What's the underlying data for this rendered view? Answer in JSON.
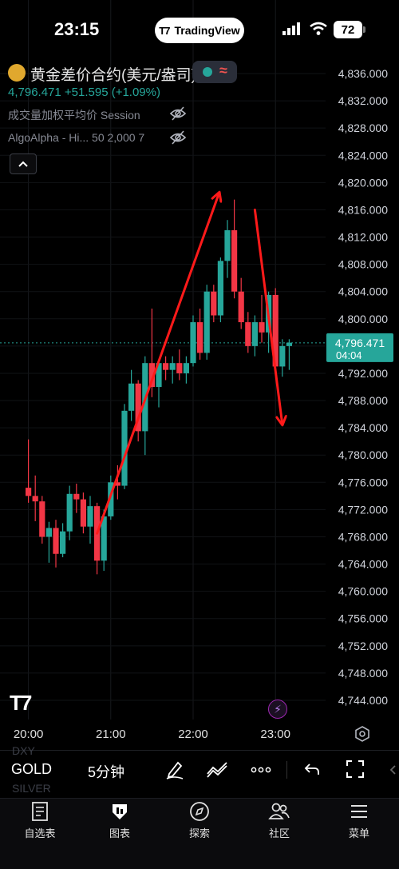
{
  "status_bar": {
    "time": "23:15",
    "app_pill": "TradingView",
    "battery": "72"
  },
  "header": {
    "symbol": "黄金差价合约(美元/盎司)",
    "price_line": "4,796.471 +51.595 (+1.09%)",
    "indicators": [
      {
        "label": "成交量加权平均价  Session"
      },
      {
        "label": "AlgoAlpha - Hi...  50 2,000 7"
      }
    ]
  },
  "colors": {
    "up": "#26a69a",
    "down": "#f23645",
    "arrow": "#ff1a1a",
    "price_tag": "#26a69a"
  },
  "chart_data": {
    "type": "candlestick",
    "interval_minutes": 5,
    "ylim": [
      4742,
      4838
    ],
    "y_ticks": [
      4836,
      4832,
      4828,
      4824,
      4820,
      4816,
      4812,
      4808,
      4804,
      4800,
      4796,
      4792,
      4788,
      4784,
      4780,
      4776,
      4772,
      4768,
      4764,
      4760,
      4756,
      4752,
      4748,
      4744
    ],
    "y_tick_labels": [
      "4,836.000",
      "4,832.000",
      "4,828.000",
      "4,824.000",
      "4,820.000",
      "4,816.000",
      "4,812.000",
      "4,808.000",
      "4,804.000",
      "4,800.000",
      "4,796.000",
      "4,792.000",
      "4,788.000",
      "4,784.000",
      "4,780.000",
      "4,776.000",
      "4,772.000",
      "4,768.000",
      "4,764.000",
      "4,760.000",
      "4,756.000",
      "4,752.000",
      "4,748.000",
      "4,744.000"
    ],
    "x_tick_labels": [
      {
        "minutes": -45,
        "label": "20:00"
      },
      {
        "minutes": 15,
        "label": "21:00"
      },
      {
        "minutes": 75,
        "label": "22:00"
      },
      {
        "minutes": 135,
        "label": "23:00"
      }
    ],
    "current_price": {
      "value": 4796.471,
      "label": "4,796.471",
      "countdown": "04:04"
    },
    "candles": [
      {
        "t": -45,
        "o": 4775.2,
        "h": 4782.3,
        "l": 4773.0,
        "c": 4774.0
      },
      {
        "t": -40,
        "o": 4774.0,
        "h": 4777.0,
        "l": 4770.3,
        "c": 4773.2
      },
      {
        "t": -35,
        "o": 4773.2,
        "h": 4774.0,
        "l": 4767.0,
        "c": 4768.0
      },
      {
        "t": -30,
        "o": 4768.0,
        "h": 4770.2,
        "l": 4764.2,
        "c": 4769.3
      },
      {
        "t": -25,
        "o": 4769.3,
        "h": 4770.5,
        "l": 4763.5,
        "c": 4765.5
      },
      {
        "t": -20,
        "o": 4765.5,
        "h": 4770.0,
        "l": 4765.0,
        "c": 4768.8
      },
      {
        "t": -15,
        "o": 4768.8,
        "h": 4775.5,
        "l": 4767.5,
        "c": 4774.3
      },
      {
        "t": -10,
        "o": 4774.3,
        "h": 4775.8,
        "l": 4771.5,
        "c": 4773.5
      },
      {
        "t": -5,
        "o": 4773.5,
        "h": 4774.5,
        "l": 4768.5,
        "c": 4769.5
      },
      {
        "t": 0,
        "o": 4769.5,
        "h": 4774.0,
        "l": 4767.0,
        "c": 4772.5
      },
      {
        "t": 5,
        "o": 4772.5,
        "h": 4773.0,
        "l": 4762.5,
        "c": 4764.5
      },
      {
        "t": 10,
        "o": 4764.5,
        "h": 4772.0,
        "l": 4763.0,
        "c": 4771.0
      },
      {
        "t": 15,
        "o": 4771.0,
        "h": 4777.0,
        "l": 4770.5,
        "c": 4776.0
      },
      {
        "t": 20,
        "o": 4776.0,
        "h": 4778.5,
        "l": 4773.5,
        "c": 4775.5
      },
      {
        "t": 25,
        "o": 4775.5,
        "h": 4787.5,
        "l": 4775.0,
        "c": 4786.5
      },
      {
        "t": 30,
        "o": 4786.5,
        "h": 4792.5,
        "l": 4785.0,
        "c": 4790.5
      },
      {
        "t": 35,
        "o": 4790.5,
        "h": 4791.0,
        "l": 4782.0,
        "c": 4783.5
      },
      {
        "t": 40,
        "o": 4783.5,
        "h": 4794.5,
        "l": 4780.0,
        "c": 4793.5
      },
      {
        "t": 45,
        "o": 4793.5,
        "h": 4801.5,
        "l": 4788.5,
        "c": 4790.0
      },
      {
        "t": 50,
        "o": 4790.0,
        "h": 4794.0,
        "l": 4787.0,
        "c": 4793.5
      },
      {
        "t": 55,
        "o": 4793.5,
        "h": 4794.5,
        "l": 4791.0,
        "c": 4792.5
      },
      {
        "t": 60,
        "o": 4792.5,
        "h": 4794.5,
        "l": 4790.5,
        "c": 4793.5
      },
      {
        "t": 65,
        "o": 4793.5,
        "h": 4795.5,
        "l": 4791.0,
        "c": 4792.0
      },
      {
        "t": 70,
        "o": 4792.0,
        "h": 4794.5,
        "l": 4790.5,
        "c": 4793.5
      },
      {
        "t": 75,
        "o": 4793.5,
        "h": 4800.5,
        "l": 4793.0,
        "c": 4799.5
      },
      {
        "t": 80,
        "o": 4799.5,
        "h": 4801.5,
        "l": 4794.0,
        "c": 4795.0
      },
      {
        "t": 85,
        "o": 4795.0,
        "h": 4805.0,
        "l": 4794.0,
        "c": 4804.0
      },
      {
        "t": 90,
        "o": 4804.0,
        "h": 4805.0,
        "l": 4799.5,
        "c": 4800.5
      },
      {
        "t": 95,
        "o": 4800.5,
        "h": 4809.0,
        "l": 4799.5,
        "c": 4808.5
      },
      {
        "t": 100,
        "o": 4808.5,
        "h": 4814.5,
        "l": 4806.0,
        "c": 4813.0
      },
      {
        "t": 105,
        "o": 4813.0,
        "h": 4817.5,
        "l": 4803.0,
        "c": 4804.0
      },
      {
        "t": 110,
        "o": 4804.0,
        "h": 4806.0,
        "l": 4798.5,
        "c": 4799.5
      },
      {
        "t": 115,
        "o": 4799.5,
        "h": 4801.0,
        "l": 4795.0,
        "c": 4796.0
      },
      {
        "t": 120,
        "o": 4796.0,
        "h": 4800.5,
        "l": 4794.5,
        "c": 4799.5
      },
      {
        "t": 125,
        "o": 4799.5,
        "h": 4803.5,
        "l": 4796.5,
        "c": 4798.0
      },
      {
        "t": 130,
        "o": 4798.0,
        "h": 4804.0,
        "l": 4795.0,
        "c": 4803.5
      },
      {
        "t": 135,
        "o": 4803.5,
        "h": 4804.5,
        "l": 4792.0,
        "c": 4793.0
      },
      {
        "t": 140,
        "o": 4793.0,
        "h": 4797.0,
        "l": 4791.5,
        "c": 4796.0
      },
      {
        "t": 145,
        "o": 4796.0,
        "h": 4797.0,
        "l": 4792.5,
        "c": 4796.5
      }
    ],
    "annotations": [
      {
        "type": "arrow",
        "from": {
          "t": 5,
          "price": 4768.5
        },
        "to": {
          "t": 94,
          "price": 4818.5
        }
      },
      {
        "type": "arrow",
        "from": {
          "t": 120,
          "price": 4816.0
        },
        "to": {
          "t": 140,
          "price": 4784.5
        }
      }
    ],
    "title": "",
    "xlabel": "",
    "ylabel": ""
  },
  "toolbar": {
    "symbols": {
      "prev": "DXY",
      "current": "GOLD",
      "next": "SILVER"
    },
    "interval": "5分钟"
  },
  "bottom_nav": [
    {
      "label": "自选表",
      "icon": "watchlist-icon"
    },
    {
      "label": "图表",
      "icon": "chart-icon"
    },
    {
      "label": "探索",
      "icon": "compass-icon"
    },
    {
      "label": "社区",
      "icon": "community-icon"
    },
    {
      "label": "菜单",
      "icon": "menu-icon"
    }
  ]
}
